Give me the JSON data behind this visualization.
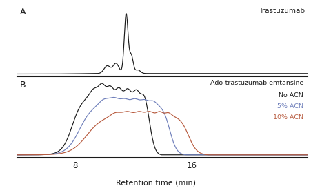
{
  "title_A": "Trastuzumab",
  "title_B1": "Ado-trastuzumab emtansine",
  "label_no_acn": "No ACN",
  "label_5_acn": "5% ACN",
  "label_10_acn": "10% ACN",
  "panel_A_label": "A",
  "panel_B_label": "B",
  "xlabel": "Retention time (min)",
  "xmin": 4,
  "xmax": 24,
  "xticks": [
    8,
    16
  ],
  "color_black": "#1a1a1a",
  "color_blue": "#7080bb",
  "color_red": "#b85c40",
  "background": "#ffffff"
}
